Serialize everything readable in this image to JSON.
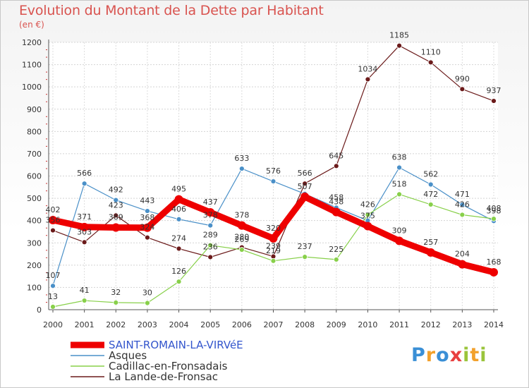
{
  "title": "Evolution du Montant de la Dette par Habitant",
  "unit_label": "(en €)",
  "logo": {
    "letters": [
      "P",
      "r",
      "o",
      "x",
      "i",
      "t",
      "i"
    ],
    "colors": [
      "#3a8fd6",
      "#f2a12c",
      "#3a8fd6",
      "#e83f3f",
      "#9ac43b",
      "#f2a12c",
      "#9ac43b"
    ]
  },
  "chart_data": {
    "type": "line",
    "title": "Evolution du Montant de la Dette par Habitant",
    "ylabel": "(en €)",
    "xlabel": "",
    "x": [
      "2000",
      "2001",
      "2002",
      "2003",
      "2004",
      "2005",
      "2006",
      "2007",
      "2008",
      "2009",
      "2010",
      "2011",
      "2012",
      "2013",
      "2014"
    ],
    "ylim": [
      0,
      1200
    ],
    "yticks": [
      "0",
      "100",
      "200",
      "300",
      "400",
      "500",
      "600",
      "700",
      "800",
      "900",
      "1000",
      "1100",
      "1200"
    ],
    "grid": true,
    "legend_position": "bottom-left",
    "series": [
      {
        "name": "SAINT-ROMAIN-LA-VIRVéE",
        "color": "#ee0000",
        "values": [
          402,
          371,
          369,
          368,
          495,
          437,
          378,
          320,
          507,
          438,
          375,
          309,
          257,
          204,
          168
        ],
        "labels": [
          "402",
          "371",
          "369",
          "368",
          "495",
          "437",
          "378",
          "320",
          "507",
          "438",
          "375",
          "309",
          "257",
          "204",
          "168"
        ]
      },
      {
        "name": "Asques",
        "color": "#4a90c8",
        "values": [
          107,
          566,
          492,
          443,
          406,
          378,
          633,
          576,
          520,
          458,
          400,
          638,
          562,
          471,
          398
        ],
        "labels": [
          "107",
          "566",
          "492",
          "443",
          "406",
          "378",
          "633",
          "576",
          "",
          "458",
          "",
          "638",
          "562",
          "471",
          "398"
        ]
      },
      {
        "name": "Cadillac-en-Fronsadais",
        "color": "#88d04a",
        "values": [
          13,
          41,
          32,
          30,
          126,
          289,
          269,
          219,
          237,
          225,
          426,
          518,
          472,
          426,
          408
        ],
        "labels": [
          "13",
          "41",
          "32",
          "30",
          "126",
          "289",
          "269",
          "219",
          "237",
          "225",
          "426",
          "518",
          "472",
          "426",
          "408"
        ]
      },
      {
        "name": "La Lande-de-Fronsac",
        "color": "#6b1a1a",
        "values": [
          356,
          303,
          423,
          324,
          274,
          236,
          280,
          239,
          566,
          645,
          1034,
          1185,
          1110,
          990,
          937
        ],
        "labels": [
          "356",
          "303",
          "423",
          "324",
          "274",
          "236",
          "280",
          "239",
          "566",
          "645",
          "1034",
          "1185",
          "1110",
          "990",
          "937"
        ]
      }
    ]
  }
}
